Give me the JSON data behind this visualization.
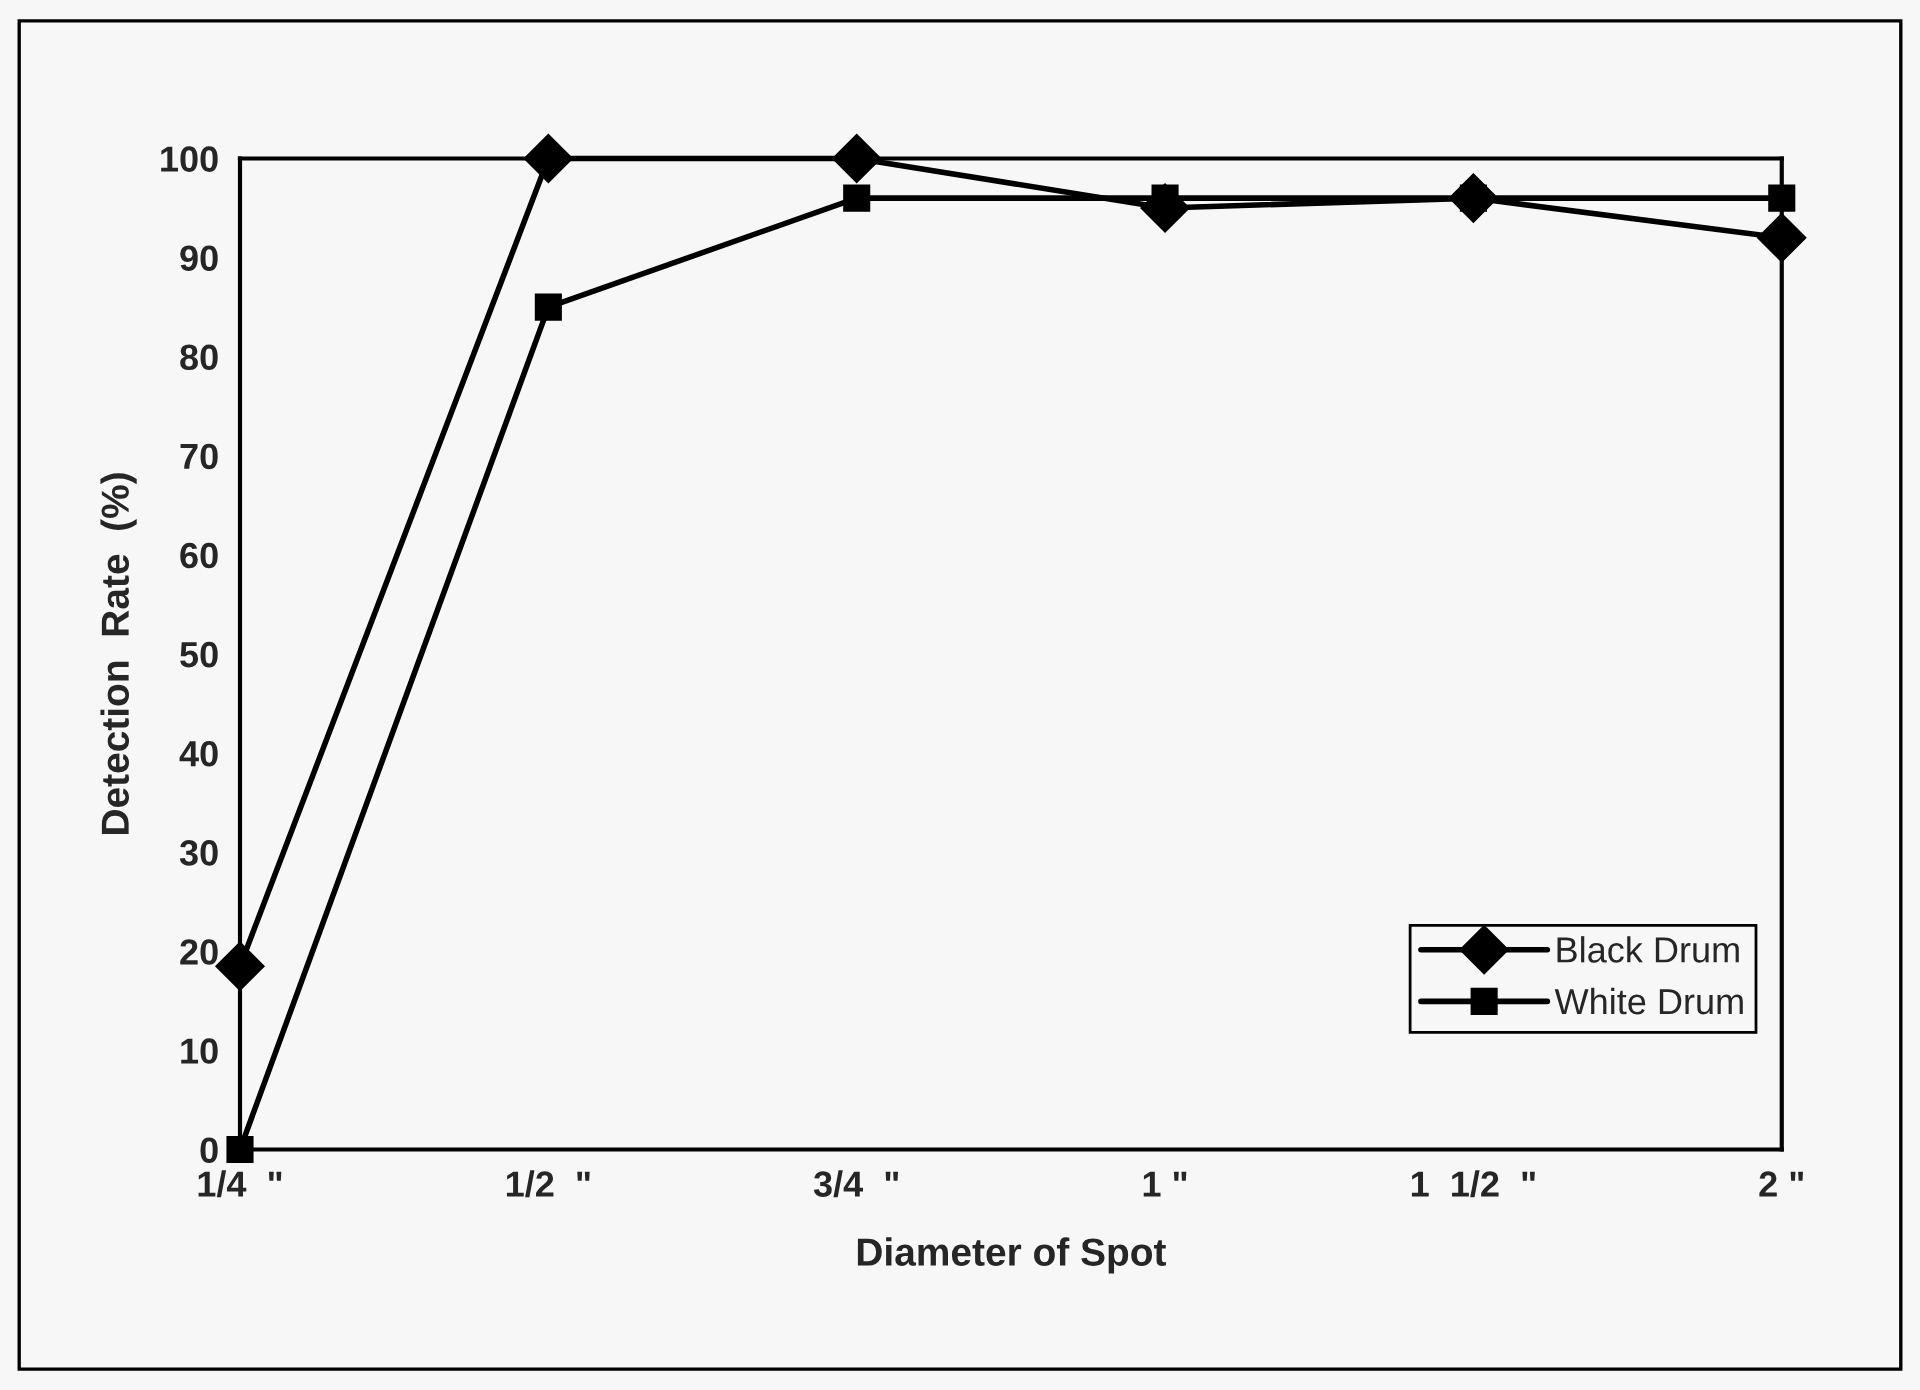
{
  "chart_data": {
    "type": "line",
    "xlabel": "Diameter of Spot",
    "ylabel": "Detection  Rate  (%)",
    "categories": [
      "1/4  \"",
      "1/2  \"",
      "3/4  \"",
      "1 \"",
      "1  1/2  \"",
      "2 \""
    ],
    "series": [
      {
        "name": "Black Drum",
        "color": "#000000",
        "marker": "diamond",
        "values": [
          18.5,
          100,
          100,
          95,
          96,
          92
        ]
      },
      {
        "name": "White Drum",
        "color": "#000000",
        "marker": "square",
        "values": [
          0,
          85,
          96,
          96,
          96,
          96
        ]
      }
    ],
    "ylim": [
      0,
      100
    ],
    "yticks": [
      0,
      10,
      20,
      30,
      40,
      50,
      60,
      70,
      80,
      90,
      100
    ],
    "grid": false,
    "legend": "bottom right",
    "line_style": "solid"
  }
}
